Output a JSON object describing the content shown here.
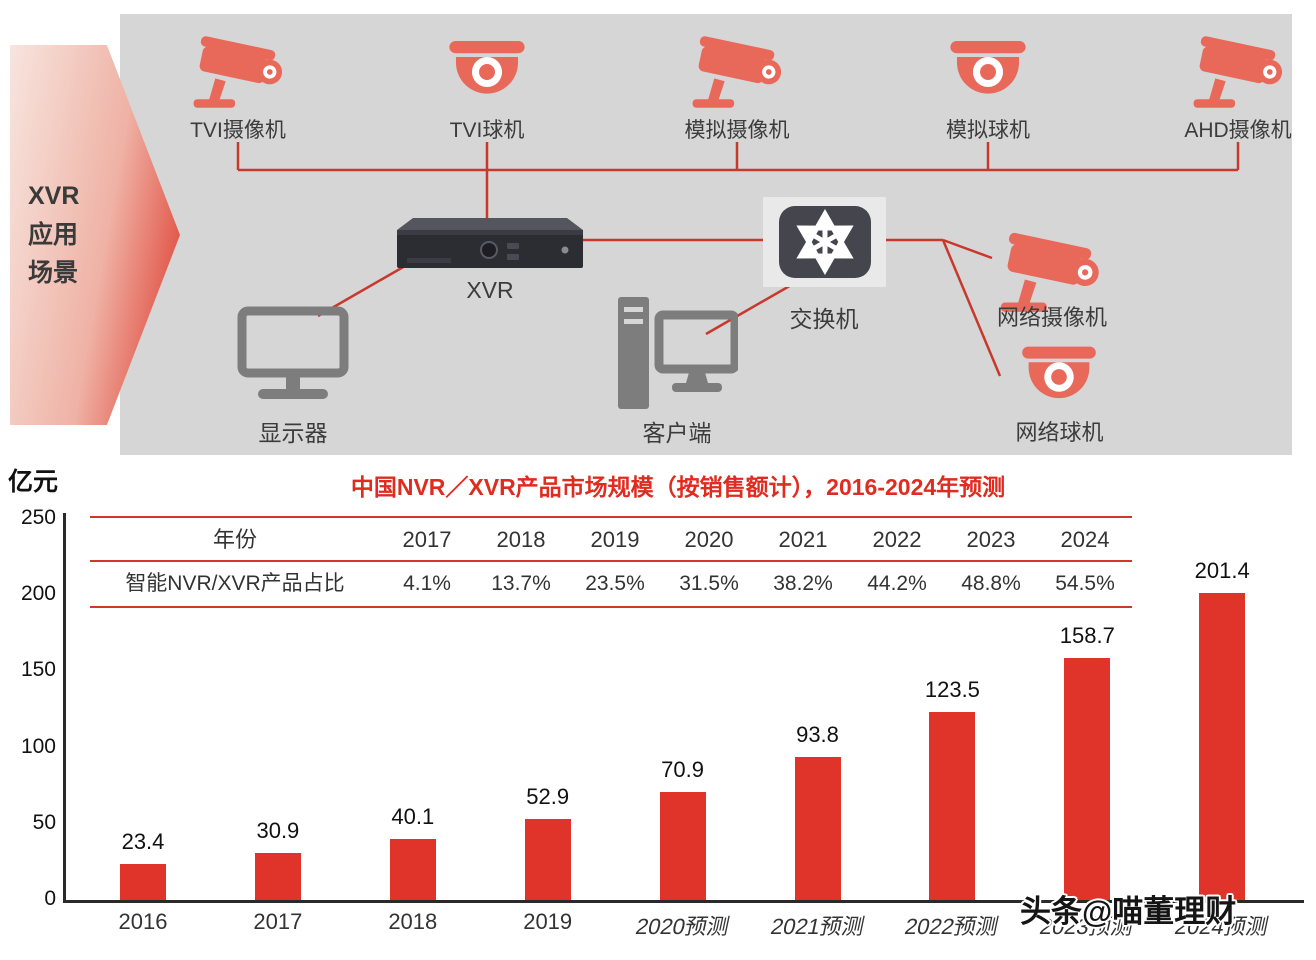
{
  "diagram": {
    "arrow": {
      "line1": "XVR",
      "line2": "应用",
      "line3": "场景"
    },
    "top_devices": [
      {
        "label": "TVI摄像机",
        "icon": "bullet-camera-icon"
      },
      {
        "label": "TVI球机",
        "icon": "dome-camera-icon"
      },
      {
        "label": "模拟摄像机",
        "icon": "bullet-camera-icon"
      },
      {
        "label": "模拟球机",
        "icon": "dome-camera-icon"
      },
      {
        "label": "AHD摄像机",
        "icon": "bullet-camera-icon"
      }
    ],
    "xvr": {
      "label": "XVR"
    },
    "switch": {
      "label": "交换机"
    },
    "monitor": {
      "label": "显示器"
    },
    "client": {
      "label": "客户端"
    },
    "network_camera": {
      "label": "网络摄像机"
    },
    "network_dome": {
      "label": "网络球机"
    }
  },
  "chart": {
    "unit_label": "亿元",
    "title": "中国NVR／XVR产品市场规模（按销售额计），2016-2024年预测",
    "table": {
      "year_row_label": "年份",
      "share_row_label": "智能NVR/XVR产品占比",
      "years": [
        "2017",
        "2018",
        "2019",
        "2020",
        "2021",
        "2022",
        "2023",
        "2024"
      ],
      "shares": [
        "4.1%",
        "13.7%",
        "23.5%",
        "31.5%",
        "38.2%",
        "44.2%",
        "48.8%",
        "54.5%"
      ]
    },
    "watermark": "头条@喵董理财"
  },
  "chart_data": {
    "type": "bar",
    "categories": [
      "2016",
      "2017",
      "2018",
      "2019",
      "2020预测",
      "2021预测",
      "2022预测",
      "2023预测",
      "2024预测"
    ],
    "values": [
      23.4,
      30.9,
      40.1,
      52.9,
      70.9,
      93.8,
      123.5,
      158.7,
      201.4
    ],
    "title": "中国NVR／XVR产品市场规模（按销售额计），2016-2024年预测",
    "xlabel": "",
    "ylabel": "亿元",
    "ylim": [
      0,
      250
    ],
    "yticks": [
      0,
      50,
      100,
      150,
      200,
      250
    ],
    "grid": false,
    "legend": "none",
    "bar_color": "#e0342a"
  },
  "colors": {
    "accent_red": "#e02b20",
    "line_red": "#c8392c",
    "icon_salmon": "#e8695a",
    "icon_gray": "#7d7d7d",
    "panel_gray": "#d6d6d6",
    "device_dark": "#2c2c33"
  }
}
